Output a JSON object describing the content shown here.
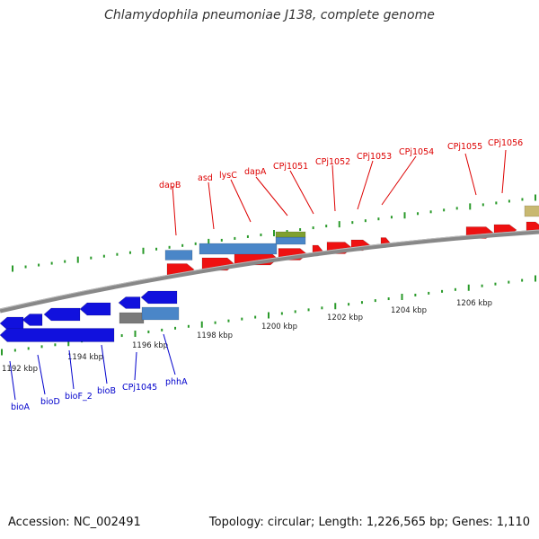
{
  "title": "Chlamydophila pneumoniae J138, complete genome",
  "footer": {
    "accession": "Accession: NC_002491",
    "summary": "Topology: circular; Length: 1,226,565 bp; Genes: 1,110"
  },
  "colors": {
    "forward_cds": "#ee1111",
    "reverse_cds": "#1111dd",
    "gene_feature": "#4a86c8",
    "other_feature": "#7fa030",
    "pseudo_feature": "#7a7a7a",
    "misc_feature": "#c8b870",
    "backbone": "#888888",
    "ticks": "#2a9a2a",
    "forward_label": "#dd0000",
    "reverse_label": "#0000cc"
  },
  "scale_labels": [
    "1192 kbp",
    "1194 kbp",
    "1196 kbp",
    "1198 kbp",
    "1200 kbp",
    "1202 kbp",
    "1204 kbp",
    "1206 kbp"
  ],
  "forward_gene_labels": [
    "dapB",
    "asd",
    "lysC",
    "dapA",
    "CPj1051",
    "CPj1052",
    "CPj1053",
    "CPj1054",
    "CPj1055",
    "CPj1056"
  ],
  "reverse_gene_labels": [
    "bioA",
    "bioD",
    "bioF_2",
    "bioB",
    "CPj1045",
    "phhA"
  ]
}
